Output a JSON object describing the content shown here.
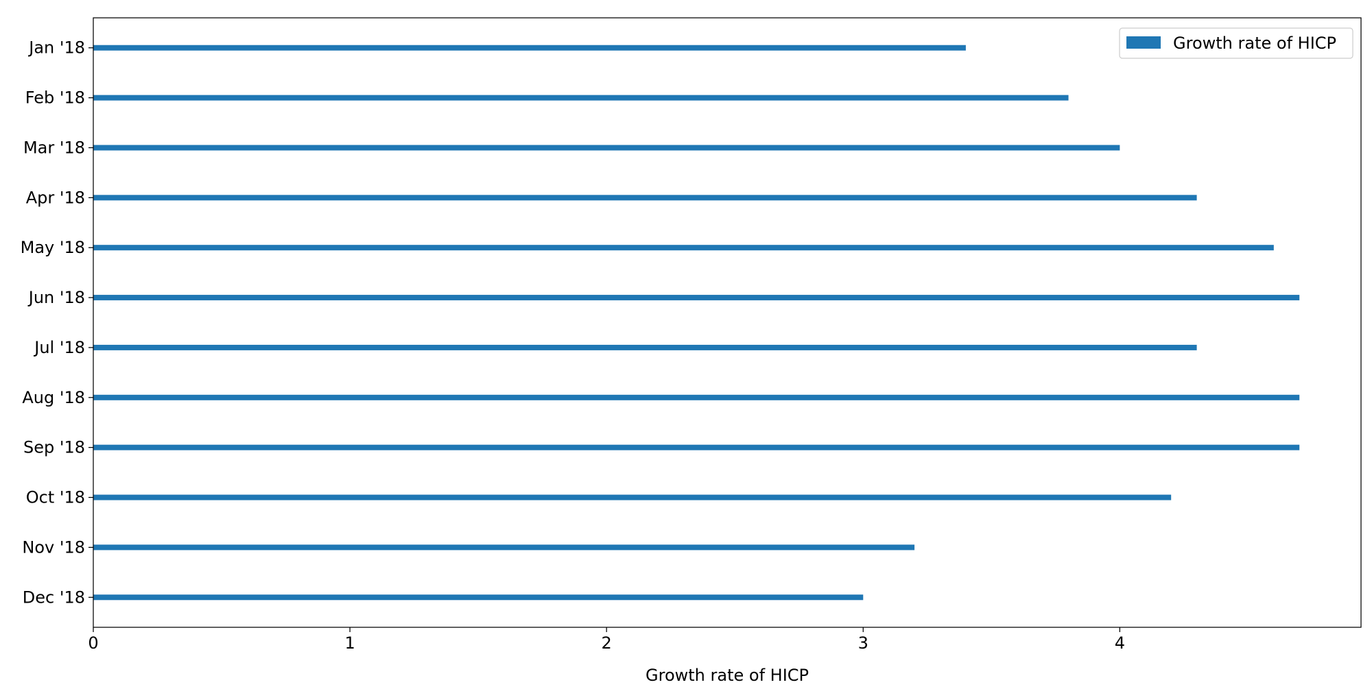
{
  "chart_data": {
    "type": "bar",
    "orientation": "horizontal",
    "categories": [
      "Jan '18",
      "Feb '18",
      "Mar '18",
      "Apr '18",
      "May '18",
      "Jun '18",
      "Jul '18",
      "Aug '18",
      "Sep '18",
      "Oct '18",
      "Nov '18",
      "Dec '18"
    ],
    "series": [
      {
        "name": "Growth rate of HICP",
        "values": [
          3.4,
          3.8,
          4.0,
          4.3,
          4.6,
          4.7,
          4.3,
          4.7,
          4.7,
          4.2,
          3.2,
          3.0
        ],
        "color": "#1f77b4"
      }
    ],
    "title": "",
    "xlabel": "Growth rate of HICP",
    "ylabel": "",
    "xlim": [
      0,
      4.94
    ],
    "xticks": [
      0,
      1,
      2,
      3,
      4
    ],
    "xtick_labels": [
      "0",
      "1",
      "2",
      "3",
      "4"
    ],
    "grid": false,
    "legend": {
      "position": "upper right",
      "entries": [
        "Growth rate of HICP"
      ]
    }
  }
}
